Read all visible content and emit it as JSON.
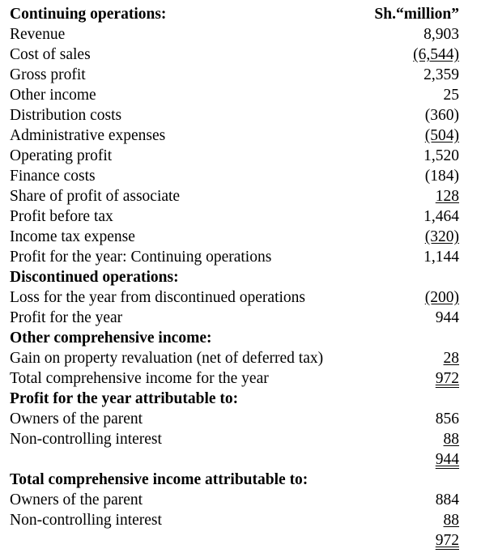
{
  "header": {
    "title": "Continuing operations:",
    "currency": "Sh.“million”"
  },
  "continuing": [
    {
      "label": "Revenue",
      "value": "8,903"
    },
    {
      "label": "Cost of sales",
      "value": "(6,544)"
    },
    {
      "label": "Gross profit",
      "value": "2,359"
    },
    {
      "label": "Other income",
      "value": "25"
    },
    {
      "label": "Distribution costs",
      "value": "(360)"
    },
    {
      "label": "Administrative expenses",
      "value": "(504)"
    },
    {
      "label": "Operating profit",
      "value": "1,520"
    },
    {
      "label": "Finance costs",
      "value": "(184)"
    },
    {
      "label": "Share of profit of associate",
      "value": "128"
    },
    {
      "label": "Profit before tax",
      "value": "1,464"
    },
    {
      "label": "Income tax expense",
      "value": "(320)"
    },
    {
      "label": "Profit for the year: Continuing operations",
      "value": "1,144"
    }
  ],
  "discontinued": {
    "heading": "Discontinued operations:",
    "loss": {
      "label": "Loss for the year from discontinued operations",
      "value": "(200)"
    },
    "profit": {
      "label": "Profit for the year",
      "value": "944"
    }
  },
  "oci": {
    "heading": "Other comprehensive income:",
    "gain": {
      "label": "Gain on property revaluation (net of deferred tax)",
      "value": "28"
    },
    "total": {
      "label": "Total comprehensive income for the year",
      "value": "972"
    }
  },
  "profit_attrib": {
    "heading": "Profit for the year attributable to:",
    "owners": {
      "label": "Owners of the parent",
      "value": "856"
    },
    "nci": {
      "label": "Non-controlling interest",
      "value": "88"
    },
    "total": "944"
  },
  "tci_attrib": {
    "heading": "Total comprehensive income attributable to:",
    "owners": {
      "label": "Owners of the parent",
      "value": "884"
    },
    "nci": {
      "label": "Non-controlling interest",
      "value": "88"
    },
    "total": "972"
  }
}
